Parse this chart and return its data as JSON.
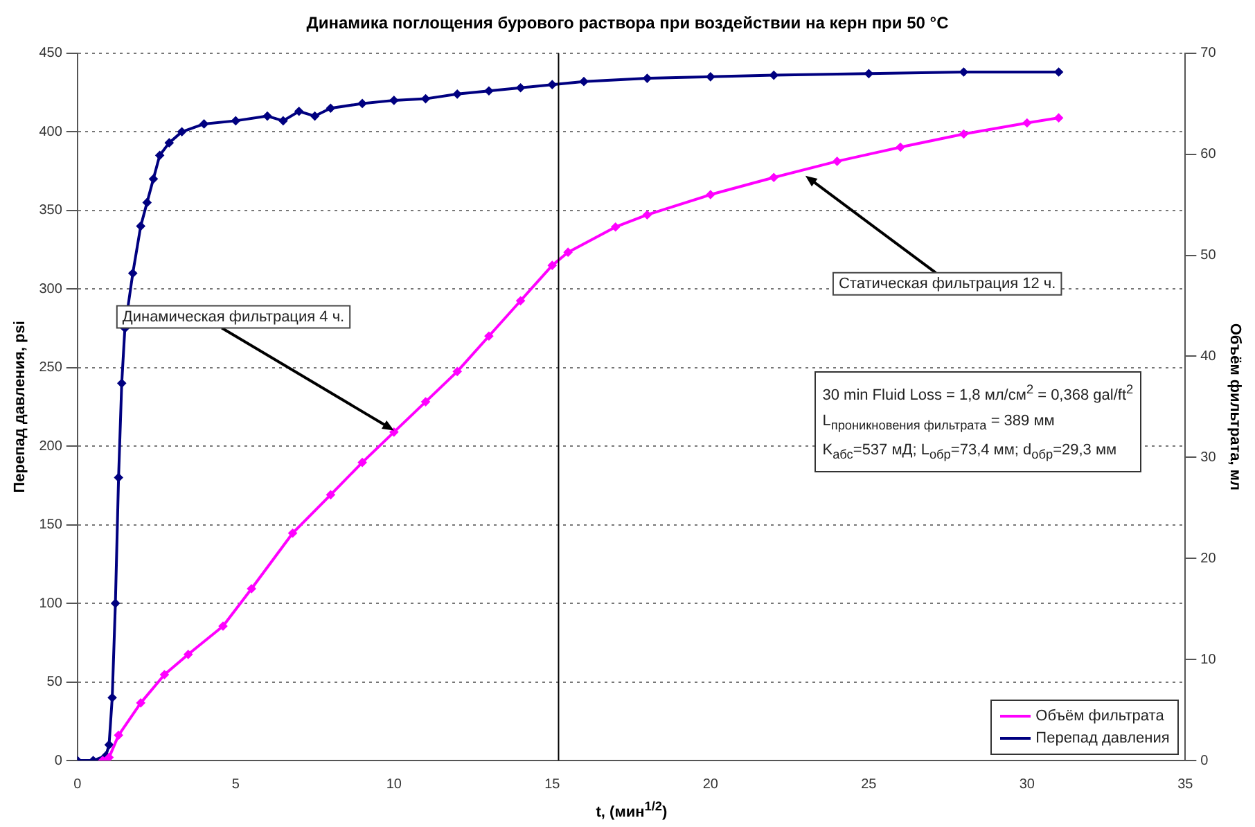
{
  "chart_data": {
    "type": "line",
    "title": "Динамика поглощения бурового раствора при воздействии на керн при 50 °С",
    "xlabel": "t, (мин$^{1/2}$)",
    "ylabel": "Перепад давления, psi",
    "y2label": "Объём фильтрата, мл",
    "series": [
      {
        "name": "Объём фильтрата",
        "color": "#ff00ff",
        "axis": "y2",
        "x": [
          0.8,
          1.0,
          1.3,
          2.0,
          2.75,
          3.5,
          4.6,
          5.5,
          6.8,
          8,
          9,
          10,
          11,
          12,
          13,
          14,
          15,
          15.5,
          17,
          18,
          20,
          22,
          24,
          26,
          28,
          30,
          31
        ],
        "values": [
          0,
          0.3,
          2.5,
          5.7,
          8.5,
          10.5,
          13.3,
          17,
          22.5,
          26.3,
          29.5,
          32.5,
          35.5,
          38.5,
          42,
          45.5,
          49,
          50.3,
          52.8,
          54,
          56,
          57.7,
          59.3,
          60.7,
          62,
          63.1,
          63.6
        ]
      },
      {
        "name": "Перепад давления",
        "color": "#000080",
        "x": [
          0,
          0.5,
          0.9,
          1.0,
          1.1,
          1.2,
          1.3,
          1.4,
          1.5,
          1.75,
          2.0,
          2.2,
          2.4,
          2.6,
          2.9,
          3.3,
          4,
          5,
          6,
          6.5,
          7,
          7.5,
          8,
          9,
          10,
          11,
          12,
          13,
          14,
          15,
          16,
          18,
          20,
          22,
          25,
          28,
          31
        ],
        "values": [
          0,
          0,
          3,
          10,
          40,
          100,
          180,
          240,
          275,
          310,
          340,
          355,
          370,
          385,
          393,
          400,
          405,
          407,
          410,
          407,
          413,
          410,
          415,
          418,
          420,
          421,
          424,
          426,
          428,
          430,
          432,
          434,
          435,
          436,
          437,
          438,
          438
        ]
      }
    ],
    "xlim": [
      0,
      35
    ],
    "xticks": [
      0,
      5,
      10,
      15,
      20,
      25,
      30,
      35
    ],
    "ylim": [
      0,
      450
    ],
    "yticks": [
      0,
      50,
      100,
      150,
      200,
      250,
      300,
      350,
      400,
      450
    ],
    "y2lim": [
      0,
      70
    ],
    "y2ticks": [
      0,
      10,
      20,
      30,
      40,
      50,
      60,
      70
    ],
    "ref_lines": [
      {
        "axis": "x",
        "value": 15.2,
        "color": "#000000"
      }
    ],
    "annotations": [
      {
        "text": "Динамическая фильтрация 4 ч.",
        "x": 10,
        "y": 210
      },
      {
        "text": "Статическая фильтрация 12 ч.",
        "x": 23,
        "y": 372
      },
      "30 min Fluid Loss = 1,8 мл/см$^{2}$ = 0,368 gal/ft$^{2}$",
      "L$_{проникновения фильтрата}$ = 389 мм",
      "K$_{абс}$=537 мД; L$_{обр}$=73,4 мм; d$_{обр}$=29,3 мм"
    ],
    "grid": "y",
    "legend": "bottom right",
    "marker": "diamond",
    "line_style": "solid"
  }
}
